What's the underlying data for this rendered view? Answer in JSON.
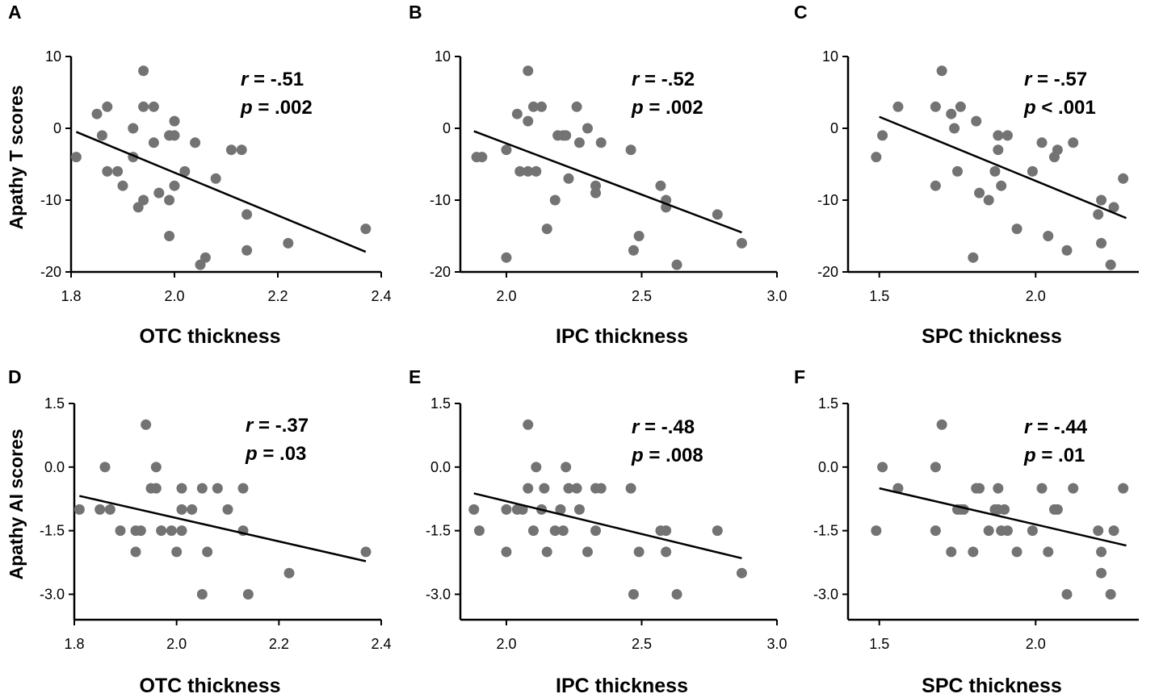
{
  "colors": {
    "point": "#737373",
    "line": "#000000",
    "axis": "#000000"
  },
  "chart_data": [
    {
      "type": "scatter",
      "panel_letter": "A",
      "xlabel": "OTC thickness",
      "ylabel": "Apathy T scores",
      "xlim": [
        1.8,
        2.4
      ],
      "ylim": [
        -20,
        10
      ],
      "xticks": [
        1.8,
        2.0,
        2.2,
        2.4
      ],
      "yticks": [
        -20,
        -10,
        0,
        10
      ],
      "xtick_labels": [
        "1.8",
        "2.0",
        "2.2",
        "2.4"
      ],
      "ytick_labels": [
        "-20",
        "-10",
        "0",
        "10"
      ],
      "stat_r_symbol": "r",
      "stat_r_value": " = -.51",
      "stat_p_symbol": "p",
      "stat_p_value": " = .002",
      "regression": {
        "x": [
          1.81,
          2.37
        ],
        "y": [
          -0.5,
          -17.2
        ]
      },
      "points": [
        [
          1.81,
          -4
        ],
        [
          1.85,
          2
        ],
        [
          1.86,
          -1
        ],
        [
          1.87,
          3
        ],
        [
          1.87,
          -6
        ],
        [
          1.89,
          -6
        ],
        [
          1.9,
          -8
        ],
        [
          1.92,
          0
        ],
        [
          1.92,
          -4
        ],
        [
          1.93,
          -11
        ],
        [
          1.94,
          8
        ],
        [
          1.94,
          3
        ],
        [
          1.94,
          -10
        ],
        [
          1.96,
          3
        ],
        [
          1.96,
          -2
        ],
        [
          1.97,
          -9
        ],
        [
          1.99,
          -1
        ],
        [
          1.99,
          -10
        ],
        [
          1.99,
          -15
        ],
        [
          2.0,
          1
        ],
        [
          2.0,
          -1
        ],
        [
          2.0,
          -8
        ],
        [
          2.02,
          -6
        ],
        [
          2.04,
          -2
        ],
        [
          2.05,
          -19
        ],
        [
          2.06,
          -18
        ],
        [
          2.08,
          -7
        ],
        [
          2.11,
          -3
        ],
        [
          2.13,
          -3
        ],
        [
          2.14,
          -12
        ],
        [
          2.14,
          -17
        ],
        [
          2.22,
          -16
        ],
        [
          2.37,
          -14
        ]
      ]
    },
    {
      "type": "scatter",
      "panel_letter": "B",
      "xlabel": "IPC thickness",
      "ylabel": "",
      "xlim": [
        1.83,
        3.0
      ],
      "ylim": [
        -20,
        10
      ],
      "xticks": [
        2.0,
        2.5,
        3.0
      ],
      "yticks": [
        -20,
        -10,
        0,
        10
      ],
      "xtick_labels": [
        "2.0",
        "2.5",
        "3.0"
      ],
      "ytick_labels": [
        "-20",
        "-10",
        "0",
        "10"
      ],
      "stat_r_symbol": "r",
      "stat_r_value": " = -.52",
      "stat_p_symbol": "p",
      "stat_p_value": " = .002",
      "regression": {
        "x": [
          1.88,
          2.87
        ],
        "y": [
          -0.4,
          -14.5
        ]
      },
      "points": [
        [
          1.89,
          -4
        ],
        [
          1.91,
          -4
        ],
        [
          2.0,
          -3
        ],
        [
          2.0,
          -18
        ],
        [
          2.04,
          2
        ],
        [
          2.05,
          -6
        ],
        [
          2.08,
          8
        ],
        [
          2.08,
          1
        ],
        [
          2.08,
          -6
        ],
        [
          2.1,
          3
        ],
        [
          2.11,
          -6
        ],
        [
          2.13,
          3
        ],
        [
          2.15,
          -14
        ],
        [
          2.18,
          -10
        ],
        [
          2.19,
          -1
        ],
        [
          2.21,
          -1
        ],
        [
          2.22,
          -1
        ],
        [
          2.23,
          -7
        ],
        [
          2.26,
          3
        ],
        [
          2.27,
          -2
        ],
        [
          2.3,
          0
        ],
        [
          2.33,
          -8
        ],
        [
          2.33,
          -9
        ],
        [
          2.35,
          -2
        ],
        [
          2.46,
          -3
        ],
        [
          2.47,
          -17
        ],
        [
          2.49,
          -15
        ],
        [
          2.57,
          -8
        ],
        [
          2.59,
          -10
        ],
        [
          2.59,
          -11
        ],
        [
          2.63,
          -19
        ],
        [
          2.78,
          -12
        ],
        [
          2.87,
          -16
        ]
      ]
    },
    {
      "type": "scatter",
      "panel_letter": "C",
      "xlabel": "SPC thickness",
      "ylabel": "",
      "xlim": [
        1.4,
        2.33
      ],
      "ylim": [
        -20,
        10
      ],
      "xticks": [
        1.5,
        2.0
      ],
      "yticks": [
        -20,
        -10,
        0,
        10
      ],
      "xtick_labels": [
        "1.5",
        "2.0"
      ],
      "ytick_labels": [
        "-20",
        "-10",
        "0",
        "10"
      ],
      "stat_r_symbol": "r",
      "stat_r_value": " = -.57",
      "stat_p_symbol": "p",
      "stat_p_value": " < .001",
      "regression": {
        "x": [
          1.5,
          2.29
        ],
        "y": [
          1.6,
          -12.5
        ]
      },
      "points": [
        [
          1.49,
          -4
        ],
        [
          1.51,
          -1
        ],
        [
          1.56,
          3
        ],
        [
          1.68,
          3
        ],
        [
          1.68,
          -8
        ],
        [
          1.7,
          8
        ],
        [
          1.73,
          2
        ],
        [
          1.74,
          0
        ],
        [
          1.75,
          -6
        ],
        [
          1.76,
          3
        ],
        [
          1.8,
          -18
        ],
        [
          1.81,
          1
        ],
        [
          1.82,
          -9
        ],
        [
          1.85,
          -10
        ],
        [
          1.87,
          -6
        ],
        [
          1.88,
          -3
        ],
        [
          1.88,
          -1
        ],
        [
          1.89,
          -8
        ],
        [
          1.91,
          -1
        ],
        [
          1.94,
          -14
        ],
        [
          1.99,
          -6
        ],
        [
          2.02,
          -2
        ],
        [
          2.04,
          -15
        ],
        [
          2.06,
          -4
        ],
        [
          2.07,
          -3
        ],
        [
          2.1,
          -17
        ],
        [
          2.12,
          -2
        ],
        [
          2.2,
          -12
        ],
        [
          2.21,
          -10
        ],
        [
          2.21,
          -16
        ],
        [
          2.24,
          -19
        ],
        [
          2.25,
          -11
        ],
        [
          2.28,
          -7
        ]
      ]
    },
    {
      "type": "scatter",
      "panel_letter": "D",
      "xlabel": "OTC thickness",
      "ylabel": "Apathy AI scores",
      "xlim": [
        1.8,
        2.4
      ],
      "ylim": [
        -3.6,
        1.5
      ],
      "xticks": [
        1.8,
        2.0,
        2.2,
        2.4
      ],
      "yticks": [
        -3.0,
        -1.5,
        0.0,
        1.5
      ],
      "xtick_labels": [
        "1.8",
        "2.0",
        "2.2",
        "2.4"
      ],
      "ytick_labels": [
        "-3.0",
        "-1.5",
        "0.0",
        "1.5"
      ],
      "stat_r_symbol": "r",
      "stat_r_value": " = -.37",
      "stat_p_symbol": "p",
      "stat_p_value": " = .03",
      "regression": {
        "x": [
          1.81,
          2.37
        ],
        "y": [
          -0.68,
          -2.22
        ]
      },
      "points": [
        [
          1.81,
          -1.0
        ],
        [
          1.85,
          -1.0
        ],
        [
          1.86,
          0.0
        ],
        [
          1.87,
          -1.0
        ],
        [
          1.89,
          -1.5
        ],
        [
          1.92,
          -1.5
        ],
        [
          1.92,
          -2.0
        ],
        [
          1.93,
          -1.5
        ],
        [
          1.94,
          1.0
        ],
        [
          1.95,
          -0.5
        ],
        [
          1.96,
          0.0
        ],
        [
          1.96,
          -0.5
        ],
        [
          1.97,
          -1.5
        ],
        [
          1.99,
          -1.5
        ],
        [
          2.0,
          -2.0
        ],
        [
          2.01,
          -1.0
        ],
        [
          2.01,
          -1.5
        ],
        [
          2.01,
          -0.5
        ],
        [
          2.03,
          -1.0
        ],
        [
          2.05,
          -0.5
        ],
        [
          2.05,
          -3.0
        ],
        [
          2.06,
          -2.0
        ],
        [
          2.08,
          -0.5
        ],
        [
          2.1,
          -1.0
        ],
        [
          2.13,
          -0.5
        ],
        [
          2.13,
          -1.5
        ],
        [
          2.14,
          -3.0
        ],
        [
          2.22,
          -2.5
        ],
        [
          2.37,
          -2.0
        ]
      ]
    },
    {
      "type": "scatter",
      "panel_letter": "E",
      "xlabel": "IPC thickness",
      "ylabel": "",
      "xlim": [
        1.83,
        3.0
      ],
      "ylim": [
        -3.6,
        1.5
      ],
      "xticks": [
        2.0,
        2.5,
        3.0
      ],
      "yticks": [
        -3.0,
        -1.5,
        0.0,
        1.5
      ],
      "xtick_labels": [
        "2.0",
        "2.5",
        "3.0"
      ],
      "ytick_labels": [
        "-3.0",
        "-1.5",
        "0.0",
        "1.5"
      ],
      "stat_r_symbol": "r",
      "stat_r_value": " = -.48",
      "stat_p_symbol": "p",
      "stat_p_value": " = .008",
      "regression": {
        "x": [
          1.88,
          2.87
        ],
        "y": [
          -0.62,
          -2.15
        ]
      },
      "points": [
        [
          1.88,
          -1.0
        ],
        [
          1.9,
          -1.5
        ],
        [
          2.0,
          -1.0
        ],
        [
          2.0,
          -2.0
        ],
        [
          2.04,
          -1.0
        ],
        [
          2.06,
          -1.0
        ],
        [
          2.08,
          1.0
        ],
        [
          2.08,
          -0.5
        ],
        [
          2.1,
          -1.5
        ],
        [
          2.11,
          0.0
        ],
        [
          2.13,
          -1.0
        ],
        [
          2.14,
          -0.5
        ],
        [
          2.15,
          -2.0
        ],
        [
          2.18,
          -1.5
        ],
        [
          2.2,
          -1.0
        ],
        [
          2.21,
          -1.5
        ],
        [
          2.22,
          0.0
        ],
        [
          2.23,
          -0.5
        ],
        [
          2.26,
          -0.5
        ],
        [
          2.27,
          -1.0
        ],
        [
          2.3,
          -2.0
        ],
        [
          2.33,
          -0.5
        ],
        [
          2.33,
          -1.5
        ],
        [
          2.35,
          -0.5
        ],
        [
          2.46,
          -0.5
        ],
        [
          2.47,
          -3.0
        ],
        [
          2.49,
          -2.0
        ],
        [
          2.57,
          -1.5
        ],
        [
          2.59,
          -2.0
        ],
        [
          2.59,
          -1.5
        ],
        [
          2.63,
          -3.0
        ],
        [
          2.78,
          -1.5
        ],
        [
          2.87,
          -2.5
        ]
      ]
    },
    {
      "type": "scatter",
      "panel_letter": "F",
      "xlabel": "SPC thickness",
      "ylabel": "",
      "xlim": [
        1.4,
        2.33
      ],
      "ylim": [
        -3.6,
        1.5
      ],
      "xticks": [
        1.5,
        2.0
      ],
      "yticks": [
        -3.0,
        -1.5,
        0.0,
        1.5
      ],
      "xtick_labels": [
        "1.5",
        "2.0"
      ],
      "ytick_labels": [
        "-3.0",
        "-1.5",
        "0.0",
        "1.5"
      ],
      "stat_r_symbol": "r",
      "stat_r_value": " = -.44",
      "stat_p_symbol": "p",
      "stat_p_value": " = .01",
      "regression": {
        "x": [
          1.5,
          2.29
        ],
        "y": [
          -0.5,
          -1.85
        ]
      },
      "points": [
        [
          1.49,
          -1.5
        ],
        [
          1.51,
          0.0
        ],
        [
          1.56,
          -0.5
        ],
        [
          1.68,
          0.0
        ],
        [
          1.68,
          -1.5
        ],
        [
          1.7,
          1.0
        ],
        [
          1.73,
          -2.0
        ],
        [
          1.75,
          -1.0
        ],
        [
          1.76,
          -1.0
        ],
        [
          1.77,
          -1.0
        ],
        [
          1.8,
          -2.0
        ],
        [
          1.81,
          -0.5
        ],
        [
          1.82,
          -0.5
        ],
        [
          1.85,
          -1.5
        ],
        [
          1.87,
          -1.0
        ],
        [
          1.88,
          -1.0
        ],
        [
          1.88,
          -0.5
        ],
        [
          1.89,
          -1.5
        ],
        [
          1.9,
          -1.0
        ],
        [
          1.91,
          -1.5
        ],
        [
          1.94,
          -2.0
        ],
        [
          1.99,
          -1.5
        ],
        [
          2.02,
          -0.5
        ],
        [
          2.04,
          -2.0
        ],
        [
          2.06,
          -1.0
        ],
        [
          2.07,
          -1.0
        ],
        [
          2.1,
          -3.0
        ],
        [
          2.12,
          -0.5
        ],
        [
          2.2,
          -1.5
        ],
        [
          2.21,
          -2.0
        ],
        [
          2.21,
          -2.5
        ],
        [
          2.24,
          -3.0
        ],
        [
          2.25,
          -1.5
        ],
        [
          2.28,
          -0.5
        ]
      ]
    }
  ]
}
